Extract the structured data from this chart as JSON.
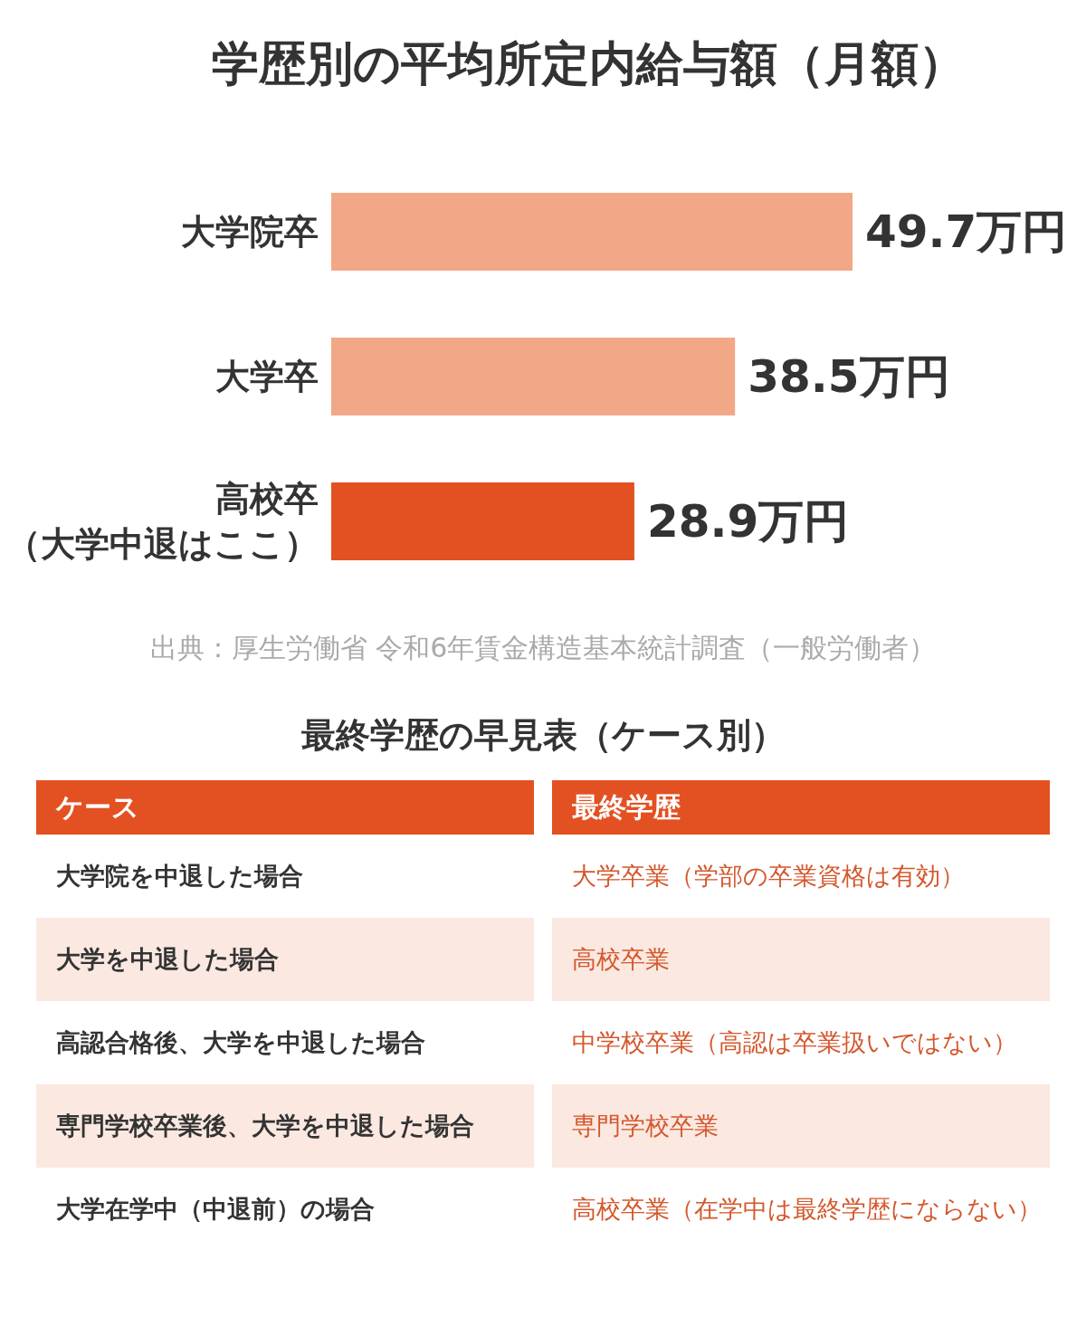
{
  "chart_data": [
    {
      "type": "bar",
      "orientation": "horizontal",
      "title": "学歴別の平均所定内給与額（月額）",
      "categories": [
        "大学院卒",
        "大学卒",
        "高校卒（大学中退はここ）"
      ],
      "values": [
        49.7,
        38.5,
        28.9
      ],
      "colors": [
        "#f2a886",
        "#f2a886",
        "#e35122"
      ],
      "value_labels": [
        "49.7万円",
        "38.5万円",
        "28.9万円"
      ],
      "annotations": [
        "出典：厚生労働省 令和6年賃金構造基本統計調査（一般労働者）"
      ]
    },
    {
      "type": "other",
      "title": "最終学歴の早見表（ケース別）",
      "categories": [
        "ケース",
        "最終学歴"
      ],
      "annotations": [
        "大学院を中退した場合",
        "大学卒業（学部の卒業資格は有効）",
        "大学を中退した場合",
        "高校卒業",
        "高認合格後、大学を中退した場合",
        "中学校卒業（高認は卒業扱いではない）",
        "専門学校卒業後、大学を中退した場合",
        "専門学校卒業",
        "大学在学中（中退前）の場合",
        "高校卒業（在学中は最終学歴にならない）"
      ]
    }
  ]
}
